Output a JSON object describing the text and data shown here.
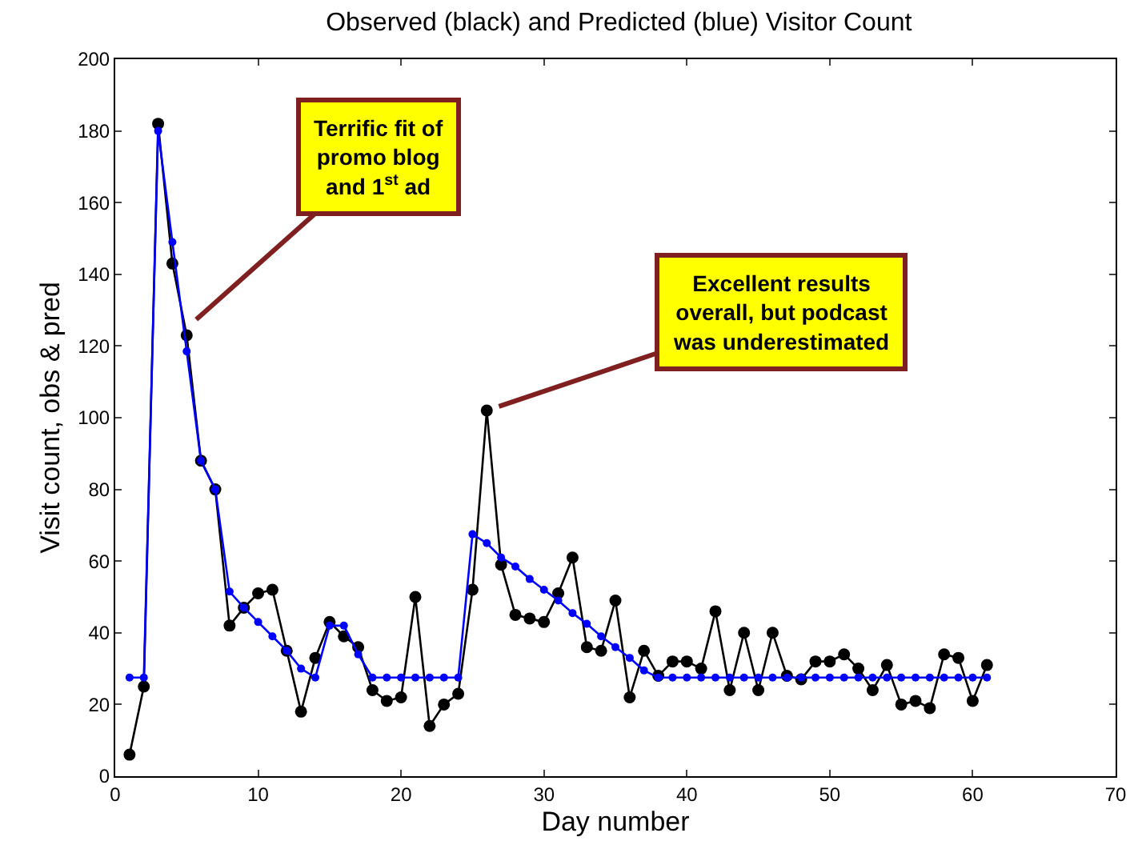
{
  "chart_data": {
    "type": "line",
    "title": "Observed (black) and Predicted (blue) Visitor Count",
    "xlabel": "Day number",
    "ylabel": "Visit count, obs & pred",
    "x": [
      1,
      2,
      3,
      4,
      5,
      6,
      7,
      8,
      9,
      10,
      11,
      12,
      13,
      14,
      15,
      16,
      17,
      18,
      19,
      20,
      21,
      22,
      23,
      24,
      25,
      26,
      27,
      28,
      29,
      30,
      31,
      32,
      33,
      34,
      35,
      36,
      37,
      38,
      39,
      40,
      41,
      42,
      43,
      44,
      45,
      46,
      47,
      48,
      49,
      50,
      51,
      52,
      53,
      54,
      55,
      56,
      57,
      58,
      59,
      60,
      61
    ],
    "series": [
      {
        "color": "#000000",
        "values": [
          6,
          25,
          182,
          143,
          123,
          88,
          80,
          42,
          47,
          51,
          52,
          35,
          18,
          33,
          43,
          39,
          36,
          24,
          21,
          22,
          50,
          14,
          20,
          23,
          52,
          102,
          59,
          45,
          44,
          43,
          51,
          61,
          36,
          35,
          49,
          22,
          35,
          28,
          32,
          32,
          30,
          46,
          24,
          40,
          24,
          40,
          28,
          27,
          32,
          32,
          34,
          30,
          24,
          31,
          20,
          21,
          19,
          34,
          33,
          21,
          31
        ]
      },
      {
        "color": "#0000ff",
        "values": [
          27.5,
          27.5,
          180,
          149,
          118.5,
          88,
          80,
          51.5,
          47,
          43,
          39,
          35,
          30,
          27.5,
          42,
          42,
          34,
          27.5,
          27.5,
          27.5,
          27.5,
          27.5,
          27.5,
          27.5,
          67.5,
          65,
          61,
          58.5,
          55,
          52,
          49,
          45.5,
          42.5,
          39,
          36,
          33,
          29.5,
          27.5,
          27.5,
          27.5,
          27.5,
          27.5,
          27.5,
          27.5,
          27.5,
          27.5,
          27.5,
          27.5,
          27.5,
          27.5,
          27.5,
          27.5,
          27.5,
          27.5,
          27.5,
          27.5,
          27.5,
          27.5,
          27.5,
          27.5,
          27.5
        ]
      }
    ],
    "xlim": [
      0,
      70
    ],
    "xticks": [
      0,
      10,
      20,
      30,
      40,
      50,
      60,
      70
    ],
    "ylim": [
      0,
      200
    ],
    "yticks": [
      0,
      20,
      40,
      60,
      80,
      100,
      120,
      140,
      160,
      180,
      200
    ],
    "grid": false,
    "marker": "circle",
    "line_style": "solid",
    "annotations": [
      {
        "text": "Terrific fit of\npromo blog\nand 1$^{st}$ ad",
        "x": 5,
        "y": 125
      },
      {
        "text": "Excellent results\noverall, but podcast\nwas underestimated",
        "x": 26,
        "y": 102
      }
    ]
  }
}
